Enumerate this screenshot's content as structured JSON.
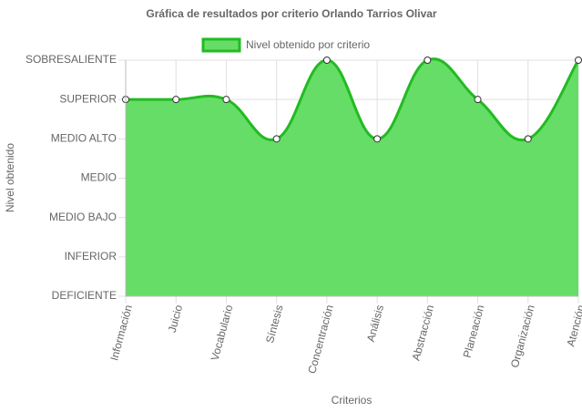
{
  "chart_data": {
    "type": "area",
    "title": "Gráfica de resultados por criterio Orlando Tarrios Olivar",
    "x_label": "Criterios",
    "y_label": "Nivel obtenido",
    "categories": [
      "Información",
      "Juicio",
      "Vocabulario",
      "Síntesis",
      "Concentración",
      "Análisis",
      "Abstracción",
      "Planeación",
      "Organización",
      "Atención"
    ],
    "series": [
      {
        "name": "Nivel obtenido por criterio",
        "color": "#22bb22",
        "fill": "#66dd66",
        "values": [
          5,
          5,
          5,
          4,
          6,
          4,
          6,
          5,
          4,
          6
        ]
      }
    ],
    "ylim": [
      0,
      6
    ],
    "yticks": [
      {
        "value": 0,
        "label": "DEFICIENTE"
      },
      {
        "value": 1,
        "label": "INFERIOR"
      },
      {
        "value": 2,
        "label": "MEDIO BAJO"
      },
      {
        "value": 3,
        "label": "MEDIO"
      },
      {
        "value": 4,
        "label": "MEDIO ALTO"
      },
      {
        "value": 5,
        "label": "SUPERIOR"
      },
      {
        "value": 6,
        "label": "SOBRESALIENTE"
      }
    ],
    "grid": true,
    "legend": "top"
  }
}
